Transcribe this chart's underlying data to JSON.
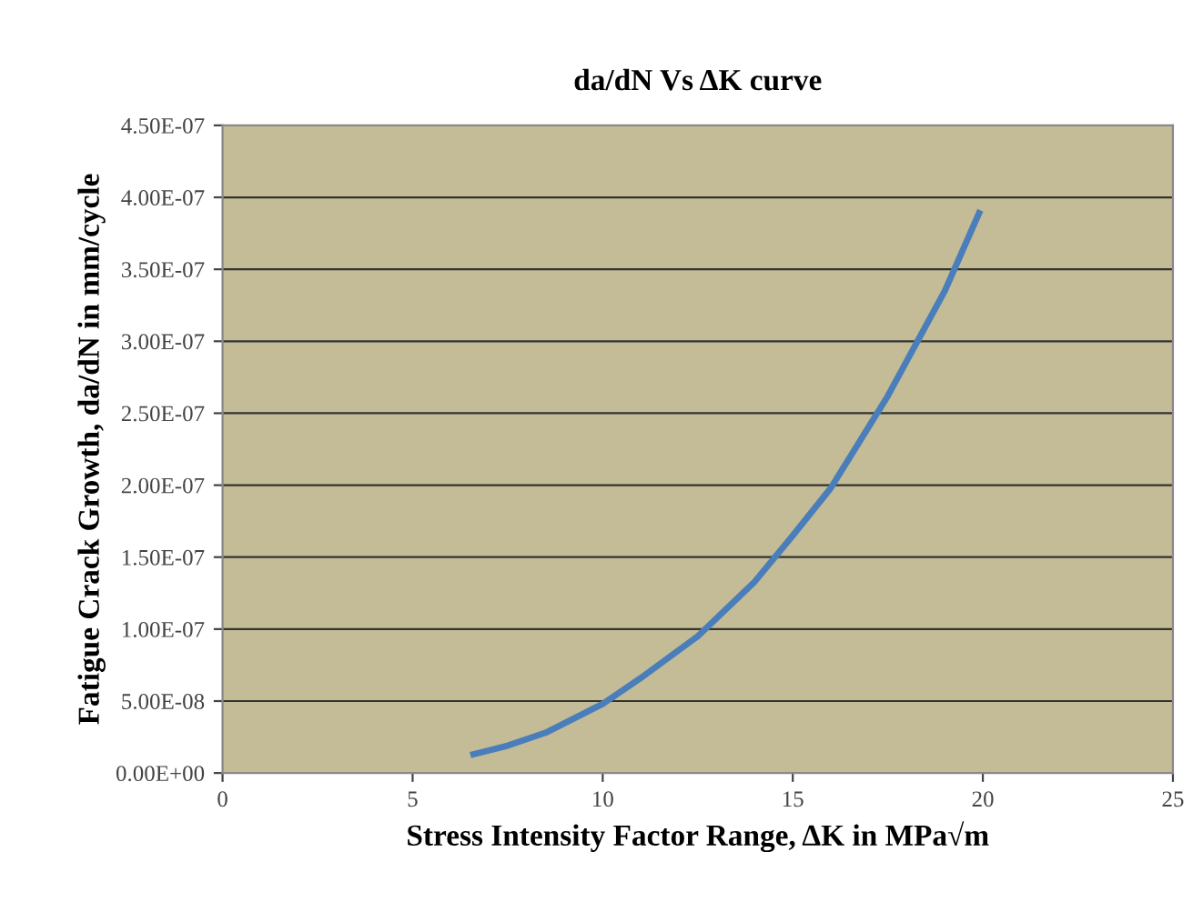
{
  "chart_data": {
    "type": "line",
    "title": "da/dN Vs ΔK curve",
    "xlabel": "Stress Intensity Factor Range, ΔK in MPa√m",
    "ylabel": "Fatigue Crack Growth, da/dN in mm/cycle",
    "x": [
      6.6,
      7.5,
      8.5,
      10,
      11,
      12.5,
      14,
      15,
      16,
      17.5,
      19,
      19.9
    ],
    "series": [
      {
        "color": "#4a7ebb",
        "values": [
          1.3e-08,
          1.9e-08,
          2.8e-08,
          4.8e-08,
          6.6e-08,
          9.5e-08,
          1.33e-07,
          1.65e-07,
          1.98e-07,
          2.62e-07,
          3.35e-07,
          3.89e-07
        ]
      }
    ],
    "xlim": [
      0,
      25
    ],
    "xticks": [
      0,
      5,
      10,
      15,
      20,
      25
    ],
    "ylim": [
      0,
      4.5e-07
    ],
    "yticks": [
      {
        "value": 0,
        "label": "0.00E+00"
      },
      {
        "value": 5e-08,
        "label": "5.00E-08"
      },
      {
        "value": 1e-07,
        "label": "1.00E-07"
      },
      {
        "value": 1.5e-07,
        "label": "1.50E-07"
      },
      {
        "value": 2e-07,
        "label": "2.00E-07"
      },
      {
        "value": 2.5e-07,
        "label": "2.50E-07"
      },
      {
        "value": 3e-07,
        "label": "3.00E-07"
      },
      {
        "value": 3.5e-07,
        "label": "3.50E-07"
      },
      {
        "value": 4e-07,
        "label": "4.00E-07"
      },
      {
        "value": 4.5e-07,
        "label": "4.50E-07"
      }
    ],
    "grid": "y",
    "marker": "none",
    "line_style": "solid",
    "legend": false
  }
}
